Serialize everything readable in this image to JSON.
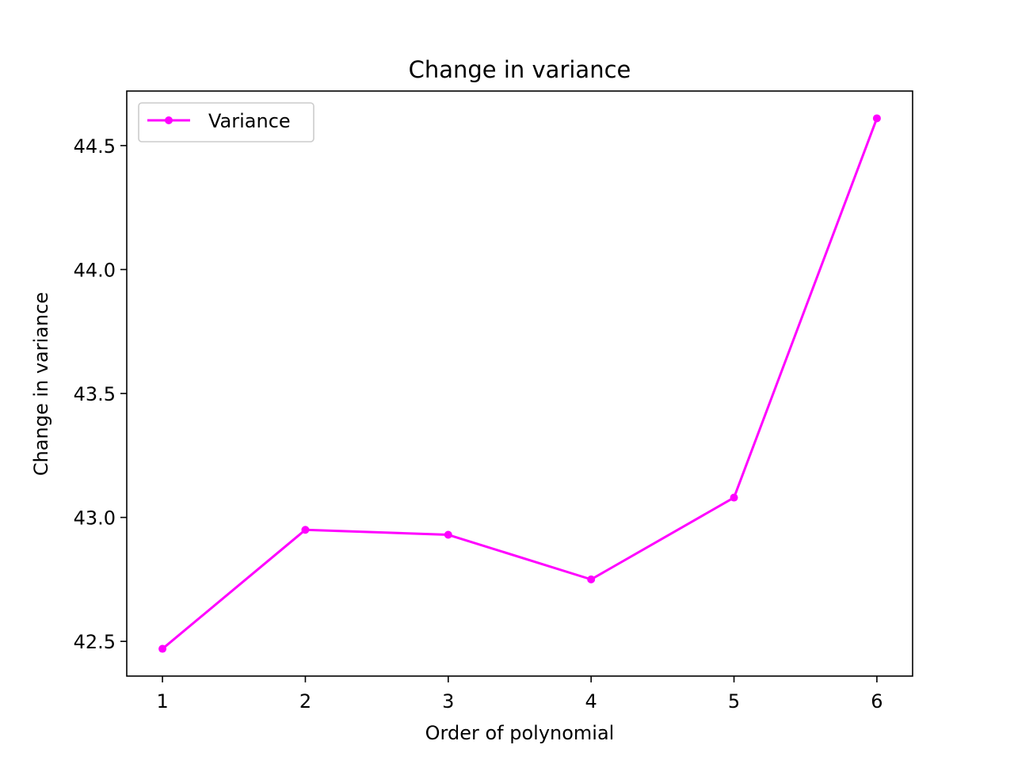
{
  "chart_data": {
    "type": "line",
    "title": "Change in variance",
    "xlabel": "Order of polynomial",
    "ylabel": "Change in variance",
    "x": [
      1,
      2,
      3,
      4,
      5,
      6
    ],
    "xticks": [
      "1",
      "2",
      "3",
      "4",
      "5",
      "6"
    ],
    "yticks": [
      "42.5",
      "43.0",
      "43.5",
      "44.0",
      "44.5"
    ],
    "xlim": [
      0.75,
      6.25
    ],
    "ylim": [
      42.36,
      44.72
    ],
    "series": [
      {
        "name": "Variance",
        "color": "#ff00ff",
        "marker": "circle",
        "values": [
          42.47,
          42.95,
          42.93,
          42.75,
          43.08,
          44.61
        ]
      }
    ],
    "legend": "upper-left",
    "grid": false
  }
}
